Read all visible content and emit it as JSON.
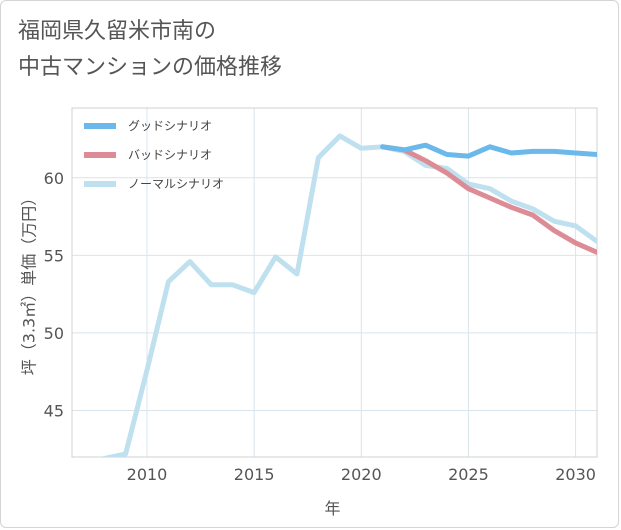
{
  "title_lines": [
    "福岡県久留米市南の",
    "中古マンションの価格推移"
  ],
  "chart_data": {
    "type": "line",
    "title": "福岡県久留米市南の中古マンションの価格推移",
    "xlabel": "年",
    "ylabel": "坪（3.3㎡）単価（万円）",
    "xlim": [
      2006.5,
      2031
    ],
    "ylim": [
      42,
      64.5
    ],
    "xticks": [
      2010,
      2015,
      2020,
      2025,
      2030
    ],
    "yticks": [
      45,
      50,
      55,
      60
    ],
    "grid": true,
    "legend_position": "top-left",
    "series": [
      {
        "name": "グッドシナリオ",
        "color": "#6bb8ea",
        "x": [
          2021,
          2022,
          2023,
          2024,
          2025,
          2026,
          2027,
          2028,
          2029,
          2030,
          2031
        ],
        "y": [
          62.0,
          61.8,
          62.1,
          61.5,
          61.4,
          62.0,
          61.6,
          61.7,
          61.7,
          61.6,
          61.5
        ]
      },
      {
        "name": "バッドシナリオ",
        "color": "#dd8c95",
        "x": [
          2021,
          2022,
          2023,
          2024,
          2025,
          2026,
          2027,
          2028,
          2029,
          2030,
          2031
        ],
        "y": [
          62.0,
          61.8,
          61.1,
          60.3,
          59.3,
          58.7,
          58.1,
          57.6,
          56.6,
          55.8,
          55.2
        ]
      },
      {
        "name": "ノーマルシナリオ",
        "color": "#bfe0ee",
        "x": [
          2007,
          2008,
          2009,
          2010,
          2011,
          2012,
          2013,
          2014,
          2015,
          2016,
          2017,
          2018,
          2019,
          2020,
          2021,
          2022,
          2023,
          2024,
          2025,
          2026,
          2027,
          2028,
          2029,
          2030,
          2031
        ],
        "y": [
          41.6,
          41.9,
          42.2,
          47.6,
          53.3,
          54.6,
          53.1,
          53.1,
          52.6,
          54.9,
          53.8,
          61.3,
          62.7,
          61.9,
          62.0,
          61.7,
          60.8,
          60.6,
          59.6,
          59.3,
          58.5,
          58.0,
          57.2,
          56.9,
          55.9
        ]
      }
    ]
  }
}
